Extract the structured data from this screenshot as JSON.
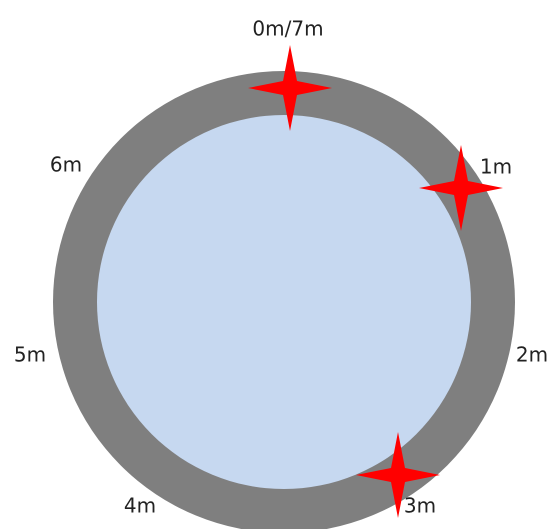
{
  "labels": [
    "0m/7m",
    "1m",
    "2m",
    "3m",
    "4m",
    "5m",
    "6m"
  ]
}
